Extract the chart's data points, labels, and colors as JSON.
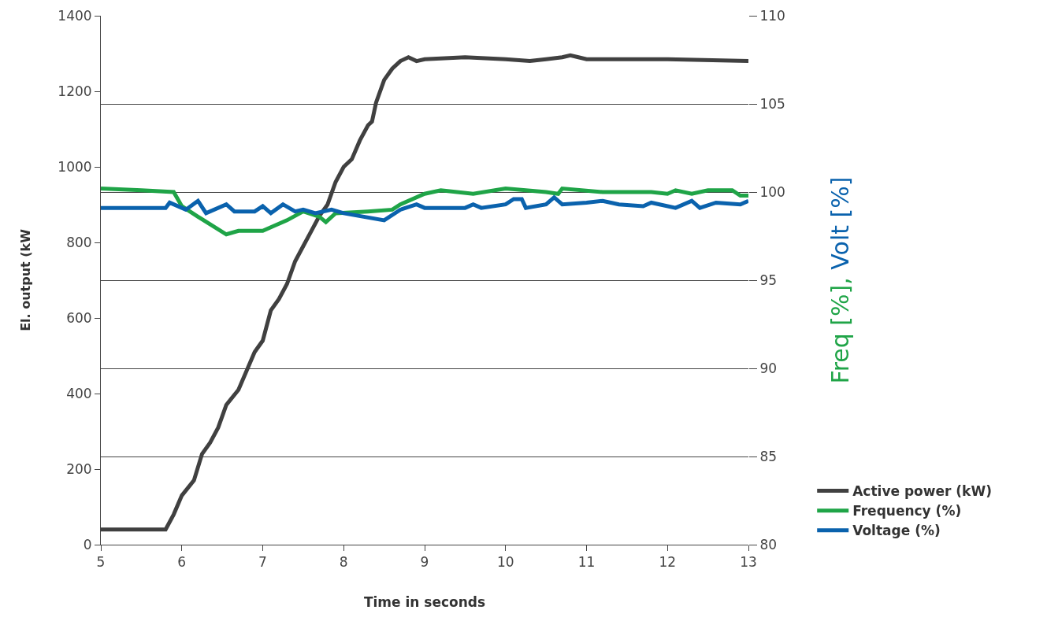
{
  "chart_data": {
    "type": "line",
    "xlabel": "Time in seconds",
    "ylabel": "El. output (kW",
    "y2label": "Freq [%], Volt [%]",
    "xlim": [
      5,
      13
    ],
    "xticks": [
      5,
      6,
      7,
      8,
      9,
      10,
      11,
      12,
      13
    ],
    "ylim": [
      0,
      1400
    ],
    "yticks": [
      0,
      200,
      400,
      600,
      800,
      1000,
      1200,
      1400
    ],
    "y2lim": [
      80,
      110
    ],
    "y2ticks": [
      80,
      85,
      90,
      95,
      100,
      105,
      110
    ],
    "grid": "y2",
    "legend": "bottom right",
    "marker": "none",
    "line_style": "solid",
    "series": [
      {
        "name": "Active power (kW)",
        "color": "#404040",
        "x": [
          5,
          5.8,
          5.9,
          6.0,
          6.15,
          6.25,
          6.35,
          6.45,
          6.55,
          6.7,
          6.8,
          6.9,
          7.0,
          7.1,
          7.2,
          7.3,
          7.4,
          7.5,
          7.6,
          7.7,
          7.8,
          7.9,
          8.0,
          8.1,
          8.2,
          8.3,
          8.35,
          8.4,
          8.5,
          8.6,
          8.7,
          8.8,
          8.9,
          9.0,
          9.5,
          10,
          10.3,
          10.5,
          10.7,
          10.8,
          10.9,
          11.0,
          12,
          13
        ],
        "values": [
          40,
          40,
          80,
          130,
          170,
          240,
          270,
          310,
          370,
          410,
          460,
          510,
          540,
          620,
          650,
          690,
          750,
          790,
          830,
          870,
          900,
          960,
          1000,
          1020,
          1070,
          1110,
          1120,
          1170,
          1230,
          1260,
          1280,
          1290,
          1280,
          1285,
          1290,
          1285,
          1280,
          1285,
          1290,
          1295,
          1290,
          1285,
          1285,
          1280
        ]
      },
      {
        "name": "Frequency (%)",
        "color": "#1fa447",
        "x": [
          5,
          5.5,
          5.9,
          6.0,
          6.2,
          6.55,
          6.7,
          7.0,
          7.1,
          7.3,
          7.5,
          7.7,
          7.78,
          7.9,
          8.3,
          8.6,
          8.7,
          9.0,
          9.2,
          9.6,
          10.0,
          10.5,
          10.65,
          10.7,
          11.2,
          11.8,
          12,
          12.1,
          12.3,
          12.5,
          12.8,
          12.9,
          13
        ],
        "values": [
          100.2,
          100.1,
          100.0,
          99.2,
          98.6,
          97.6,
          97.8,
          97.8,
          98.0,
          98.4,
          98.9,
          98.6,
          98.3,
          98.8,
          98.9,
          99.0,
          99.3,
          99.9,
          100.1,
          99.9,
          100.2,
          100.0,
          99.9,
          100.2,
          100.0,
          100.0,
          99.9,
          100.1,
          99.9,
          100.1,
          100.1,
          99.8,
          99.8
        ],
        "axis": "y2"
      },
      {
        "name": "Voltage (%)",
        "color": "#0a62ad",
        "x": [
          5,
          5.8,
          5.85,
          6.05,
          6.2,
          6.3,
          6.55,
          6.65,
          6.9,
          7.0,
          7.1,
          7.25,
          7.4,
          7.5,
          7.65,
          7.85,
          8.0,
          8.5,
          8.7,
          8.9,
          9.0,
          9.5,
          9.6,
          9.7,
          10.0,
          10.1,
          10.2,
          10.25,
          10.5,
          10.6,
          10.7,
          11.0,
          11.2,
          11.4,
          11.7,
          11.8,
          12.1,
          12.3,
          12.4,
          12.6,
          12.9,
          13.0
        ],
        "values": [
          99.1,
          99.1,
          99.4,
          99.0,
          99.5,
          98.8,
          99.3,
          98.9,
          98.9,
          99.2,
          98.8,
          99.3,
          98.9,
          99.0,
          98.8,
          99.0,
          98.8,
          98.4,
          99.0,
          99.3,
          99.1,
          99.1,
          99.3,
          99.1,
          99.3,
          99.6,
          99.6,
          99.1,
          99.3,
          99.7,
          99.3,
          99.4,
          99.5,
          99.3,
          99.2,
          99.4,
          99.1,
          99.5,
          99.1,
          99.4,
          99.3,
          99.5
        ],
        "axis": "y2"
      }
    ]
  }
}
